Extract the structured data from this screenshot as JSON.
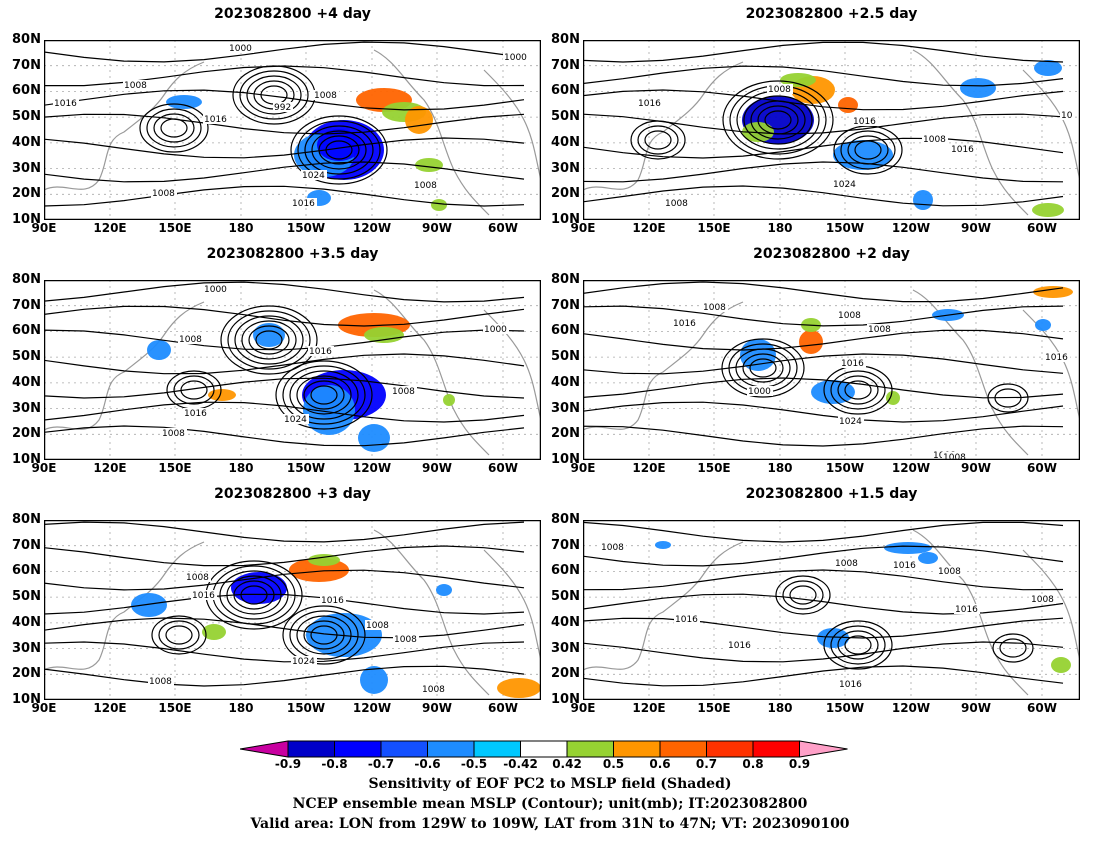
{
  "figure": {
    "panels": [
      {
        "title": "2023082800  +4 day"
      },
      {
        "title": "2023082800  +2.5  day"
      },
      {
        "title": "2023082800  +3.5  day"
      },
      {
        "title": "2023082800  +2  day"
      },
      {
        "title": "2023082800  +3  day"
      },
      {
        "title": "2023082800  +1.5  day"
      }
    ],
    "lat_ticks": [
      "80N",
      "70N",
      "60N",
      "50N",
      "40N",
      "30N",
      "20N",
      "10N"
    ],
    "lon_ticks": [
      "90E",
      "120E",
      "150E",
      "180",
      "150W",
      "120W",
      "90W",
      "60W"
    ],
    "contour_labels": {
      "p0": [
        "1000",
        "1000",
        "1008",
        "1016",
        "992",
        "1008",
        "1016",
        "1024",
        "1016",
        "1008",
        "1008"
      ],
      "p1": [
        "1008",
        "1016",
        "1016",
        "1008",
        "1016",
        "1024",
        "1008",
        "10"
      ],
      "p2": [
        "1000",
        "1008",
        "1000",
        "1016",
        "1016",
        "1024",
        "1008",
        "1008"
      ],
      "p3": [
        "1008",
        "1016",
        "1008",
        "1008",
        "1016",
        "1000",
        "1024",
        "1016",
        "1008",
        "1008"
      ],
      "p4": [
        "1008",
        "1016",
        "1016",
        "1008",
        "1008",
        "1024",
        "1008",
        "1008"
      ],
      "p5": [
        "1008",
        "1008",
        "1016",
        "1008",
        "1016",
        "1016",
        "1016",
        "1008",
        "1016"
      ]
    }
  },
  "colorbar": {
    "ticks": [
      "-0.9",
      "-0.8",
      "-0.7",
      "-0.6",
      "-0.5",
      "-0.42",
      "0.42",
      "0.5",
      "0.6",
      "0.7",
      "0.8",
      "0.9"
    ],
    "colors": [
      "#0000c8",
      "#0000ff",
      "#1450ff",
      "#1e8cff",
      "#00c8ff",
      "#ffffff",
      "#96d232",
      "#ff9600",
      "#ff6400",
      "#ff3200",
      "#ff0000"
    ],
    "low_end_color": "#c800a0",
    "high_end_color": "#ffa0c8"
  },
  "caption": {
    "line1": "Sensitivity of EOF PC2 to MSLP field (Shaded)",
    "line2": "NCEP ensemble mean MSLP (Contour); unit(mb); IT:2023082800",
    "line3": "Valid area: LON from 129W to 109W, LAT from 31N to 47N; VT: 2023090100"
  }
}
